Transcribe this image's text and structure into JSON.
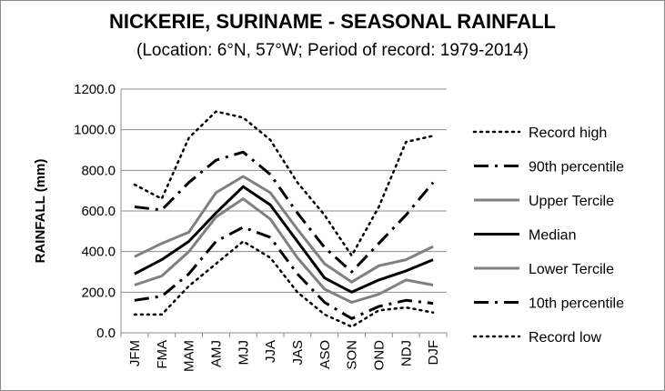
{
  "chart_data": {
    "type": "line",
    "title": "NICKERIE, SURINAME - SEASONAL RAINFALL",
    "subtitle": "(Location: 6°N, 57°W; Period of record: 1979-2014)",
    "ylabel": "RAINFALL (mm)",
    "xlabel": "",
    "ylim": [
      0,
      1200
    ],
    "yticks": [
      "0.0",
      "200.0",
      "400.0",
      "600.0",
      "800.0",
      "1000.0",
      "1200.0"
    ],
    "grid": "horizontal",
    "legend_position": "right",
    "categories": [
      "JFM",
      "FMA",
      "MAM",
      "AMJ",
      "MJJ",
      "JJA",
      "JAS",
      "ASO",
      "SON",
      "OND",
      "NDJ",
      "DJF"
    ],
    "series": [
      {
        "name": "Record high",
        "color": "#000000",
        "style": "dotted",
        "values": [
          730,
          660,
          960,
          1090,
          1060,
          950,
          740,
          580,
          380,
          620,
          940,
          970
        ]
      },
      {
        "name": "90th percentile",
        "color": "#000000",
        "style": "dashdot",
        "values": [
          620,
          605,
          740,
          850,
          890,
          780,
          590,
          420,
          300,
          440,
          580,
          740
        ]
      },
      {
        "name": "Upper Tercile",
        "color": "#808080",
        "style": "solid",
        "values": [
          375,
          440,
          495,
          690,
          770,
          690,
          510,
          340,
          250,
          330,
          360,
          425
        ]
      },
      {
        "name": "Median",
        "color": "#000000",
        "style": "solid",
        "values": [
          290,
          360,
          450,
          590,
          720,
          630,
          450,
          270,
          200,
          260,
          305,
          360
        ]
      },
      {
        "name": "Lower Tercile",
        "color": "#808080",
        "style": "solid",
        "values": [
          235,
          280,
          400,
          570,
          660,
          560,
          370,
          215,
          150,
          190,
          260,
          235
        ]
      },
      {
        "name": "10th percentile",
        "color": "#000000",
        "style": "dashdot",
        "values": [
          160,
          180,
          290,
          450,
          520,
          470,
          290,
          150,
          70,
          130,
          160,
          145
        ]
      },
      {
        "name": "Record low",
        "color": "#000000",
        "style": "dotted",
        "values": [
          90,
          90,
          230,
          340,
          450,
          370,
          200,
          90,
          30,
          110,
          125,
          100
        ]
      }
    ]
  }
}
